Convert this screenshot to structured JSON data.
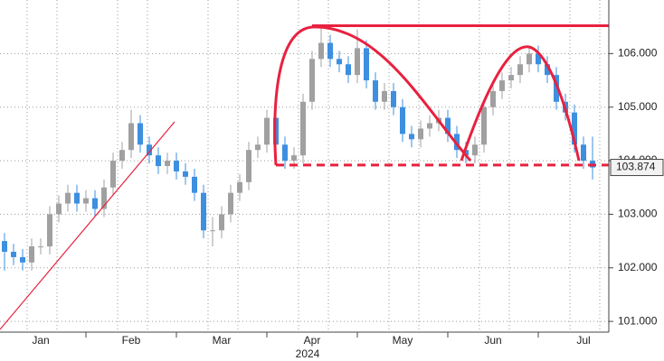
{
  "chart_data": {
    "type": "candlestick",
    "categories": [
      "Jan",
      "Feb",
      "Mar",
      "Apr",
      "May",
      "Jun",
      "Jul"
    ],
    "year_label": "2024",
    "open": [
      102.5,
      102.3,
      102.2,
      102.1,
      102.4,
      102.4,
      103.0,
      103.2,
      103.4,
      103.2,
      103.3,
      103.1,
      103.5,
      104.0,
      104.2,
      104.7,
      104.3,
      104.1,
      103.9,
      104.0,
      103.8,
      103.7,
      103.4,
      102.7,
      102.7,
      103.0,
      103.4,
      103.6,
      104.2,
      104.3,
      104.8,
      104.3,
      104.0,
      104.1,
      105.1,
      105.9,
      106.2,
      105.9,
      105.8,
      105.6,
      106.1,
      105.5,
      105.1,
      105.3,
      105.0,
      104.5,
      104.4,
      104.6,
      104.7,
      104.8,
      104.5,
      104.2,
      104.1,
      104.3,
      105.0,
      105.3,
      105.5,
      105.6,
      105.8,
      106.0,
      105.8,
      105.6,
      105.1,
      104.9,
      104.3,
      104.0
    ],
    "high": [
      102.65,
      102.45,
      102.35,
      102.55,
      102.55,
      103.15,
      103.35,
      103.55,
      103.55,
      103.45,
      103.45,
      103.65,
      104.15,
      104.35,
      104.95,
      104.85,
      104.45,
      104.25,
      104.15,
      104.15,
      103.95,
      103.85,
      103.55,
      102.95,
      103.15,
      103.55,
      103.75,
      104.35,
      104.45,
      104.95,
      104.95,
      104.45,
      104.25,
      105.25,
      106.05,
      106.5,
      106.35,
      106.05,
      105.95,
      106.45,
      106.25,
      105.65,
      105.45,
      105.45,
      105.15,
      104.65,
      104.75,
      104.85,
      104.95,
      104.95,
      104.65,
      104.35,
      104.45,
      105.15,
      105.45,
      105.65,
      105.75,
      105.95,
      106.15,
      106.15,
      105.95,
      105.75,
      105.25,
      105.05,
      104.45,
      104.45
    ],
    "low": [
      101.95,
      102.05,
      101.95,
      101.95,
      102.25,
      102.25,
      102.85,
      103.05,
      103.05,
      103.05,
      102.95,
      102.95,
      103.35,
      103.85,
      104.05,
      104.15,
      103.95,
      103.75,
      103.75,
      103.65,
      103.55,
      103.25,
      102.55,
      102.4,
      102.55,
      102.85,
      103.25,
      103.45,
      104.05,
      104.15,
      104.15,
      103.85,
      103.85,
      103.95,
      104.95,
      105.75,
      105.75,
      105.65,
      105.45,
      105.45,
      105.35,
      104.95,
      104.95,
      104.85,
      104.35,
      104.25,
      104.25,
      104.45,
      104.55,
      104.35,
      104.05,
      103.95,
      103.95,
      104.15,
      104.85,
      105.15,
      105.35,
      105.45,
      105.65,
      105.65,
      105.45,
      104.95,
      104.75,
      104.15,
      103.85,
      103.65
    ],
    "close": [
      102.3,
      102.2,
      102.1,
      102.4,
      102.4,
      103.0,
      103.2,
      103.4,
      103.2,
      103.3,
      103.1,
      103.5,
      104.0,
      104.2,
      104.7,
      104.3,
      104.1,
      103.9,
      104.0,
      103.8,
      103.7,
      103.4,
      102.7,
      102.7,
      103.0,
      103.4,
      103.6,
      104.2,
      104.3,
      104.8,
      104.3,
      104.0,
      104.1,
      105.1,
      105.9,
      106.2,
      105.9,
      105.8,
      105.6,
      106.1,
      105.5,
      105.1,
      105.3,
      105.0,
      104.5,
      104.4,
      104.6,
      104.7,
      104.8,
      104.5,
      104.2,
      104.1,
      104.3,
      105.0,
      105.3,
      105.5,
      105.6,
      105.8,
      106.0,
      105.8,
      105.6,
      105.1,
      104.9,
      104.3,
      104.0,
      103.874
    ],
    "up_color": "#a0a0a0",
    "down_color": "#3d8fe0",
    "ylim": [
      100.8,
      107.0
    ],
    "yticks": [
      {
        "value": 101,
        "label": "101.000"
      },
      {
        "value": 102,
        "label": "102.000"
      },
      {
        "value": 103,
        "label": "103.000"
      },
      {
        "value": 104,
        "label": "104.000"
      },
      {
        "value": 105,
        "label": "105.000"
      },
      {
        "value": 106,
        "label": "106.000"
      }
    ],
    "last_price": 103.874,
    "hlines": [
      {
        "value": 106.52,
        "style": "solid",
        "color": "#e8213f"
      },
      {
        "value": 103.92,
        "style": "dashed",
        "color": "#e8213f"
      }
    ],
    "grid": true
  }
}
